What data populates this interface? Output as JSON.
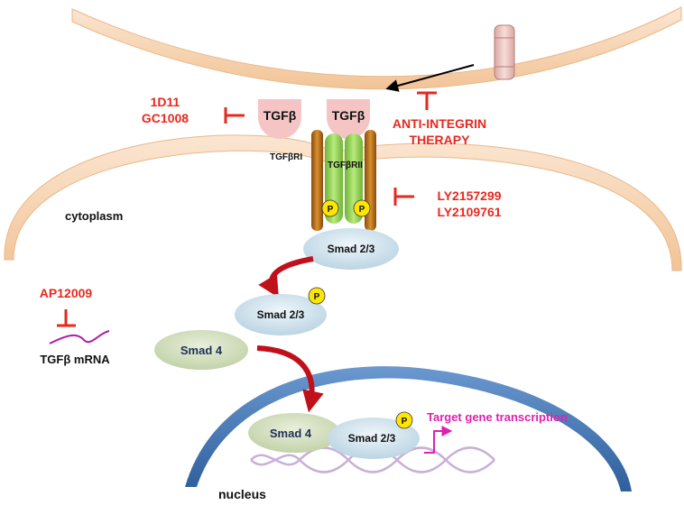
{
  "inhibitors": {
    "antibodies": [
      "1D11",
      "GC1008"
    ],
    "integrin": [
      "ANTI-INTEGRIN",
      "THERAPY"
    ],
    "kinase": [
      "LY2157299",
      "LY2109761"
    ],
    "antisense": "AP12009"
  },
  "ligands": {
    "free": "TGFβ",
    "bound": "TGFβ"
  },
  "receptors": {
    "type1": "TGFβRI",
    "type2": "TGFβRII",
    "phospho": "P"
  },
  "compartments": {
    "cytoplasm": "cytoplasm",
    "nucleus": "nucleus"
  },
  "proteins": {
    "smad23_receptor": "Smad 2/3",
    "smad23_phospho": "Smad 2/3",
    "smad4": "Smad 4",
    "smad4_nuclear": "Smad 4",
    "smad23_nuclear": "Smad 2/3"
  },
  "mrna": "TGFβ mRNA",
  "transcription": "Target gene transcription",
  "colors": {
    "inhibitor_red": "#e8281e",
    "membrane": "#f5cfa6",
    "nuclear_envelope": "#3d73b3",
    "smad23": "#d6e6ef",
    "smad4": "#d8e3c7",
    "receptor_type1": "#c87a1e",
    "receptor_type2": "#9bd45c",
    "ligand": "#f5c5c5",
    "mrna": "#b01ea8",
    "transcription": "#e020b0"
  }
}
